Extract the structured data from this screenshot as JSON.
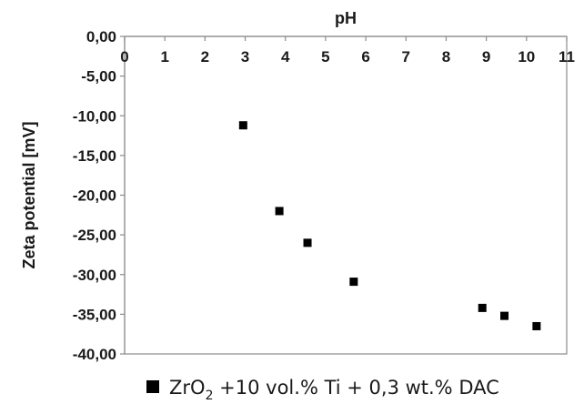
{
  "chart_data": {
    "type": "scatter",
    "xlabel": "pH",
    "ylabel": "Zeta potential [mV]",
    "xlim": [
      0,
      11
    ],
    "ylim": [
      -40,
      0
    ],
    "x_ticks": [
      "0",
      "1",
      "2",
      "3",
      "4",
      "5",
      "6",
      "7",
      "8",
      "9",
      "10",
      "11"
    ],
    "y_ticks": [
      "0,00",
      "-5,00",
      "-10,00",
      "-15,00",
      "-20,00",
      "-25,00",
      "-30,00",
      "-35,00",
      "-40,00"
    ],
    "x_axis_position": "top",
    "grid": false,
    "legend_position": "bottom",
    "marker": "square",
    "marker_color": "#000000",
    "series": [
      {
        "name": "ZrO2 +10 vol.% Ti + 0,3 wt.% DAC",
        "name_parts": {
          "prefix": "ZrO",
          "subscript": "2",
          "suffix": " +10 vol.% Ti + 0,3 wt.% DAC"
        },
        "points": [
          {
            "x": 2.95,
            "y": -11.2
          },
          {
            "x": 3.85,
            "y": -22.0
          },
          {
            "x": 4.55,
            "y": -26.0
          },
          {
            "x": 5.7,
            "y": -30.9
          },
          {
            "x": 8.9,
            "y": -34.2
          },
          {
            "x": 9.45,
            "y": -35.2
          },
          {
            "x": 10.25,
            "y": -36.5
          }
        ]
      }
    ]
  }
}
